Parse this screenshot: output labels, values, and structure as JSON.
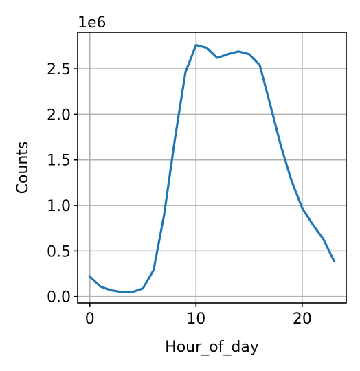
{
  "chart_data": {
    "type": "line",
    "title": "",
    "xlabel": "Hour_of_day",
    "ylabel": "Counts",
    "y_offset_label": "1e6",
    "y_scale_factor": 1000000,
    "xlim": [
      -1.15,
      24.15
    ],
    "ylim": [
      -0.07,
      2.9
    ],
    "x_ticks": [
      0,
      10,
      20
    ],
    "x_tick_labels": [
      "0",
      "10",
      "20"
    ],
    "y_ticks": [
      0.0,
      0.5,
      1.0,
      1.5,
      2.0,
      2.5
    ],
    "y_tick_labels": [
      "0.0",
      "0.5",
      "1.0",
      "1.5",
      "2.0",
      "2.5"
    ],
    "grid": true,
    "series": [
      {
        "name": "Counts",
        "color": "#1f77b4",
        "x": [
          0,
          1,
          2,
          3,
          4,
          5,
          6,
          7,
          8,
          9,
          10,
          11,
          12,
          13,
          14,
          15,
          16,
          17,
          18,
          19,
          20,
          21,
          22,
          23
        ],
        "y": [
          0.22,
          0.11,
          0.07,
          0.05,
          0.05,
          0.09,
          0.29,
          0.9,
          1.72,
          2.46,
          2.76,
          2.73,
          2.62,
          2.66,
          2.69,
          2.66,
          2.54,
          2.1,
          1.65,
          1.27,
          0.97,
          0.79,
          0.63,
          0.39
        ]
      }
    ]
  }
}
